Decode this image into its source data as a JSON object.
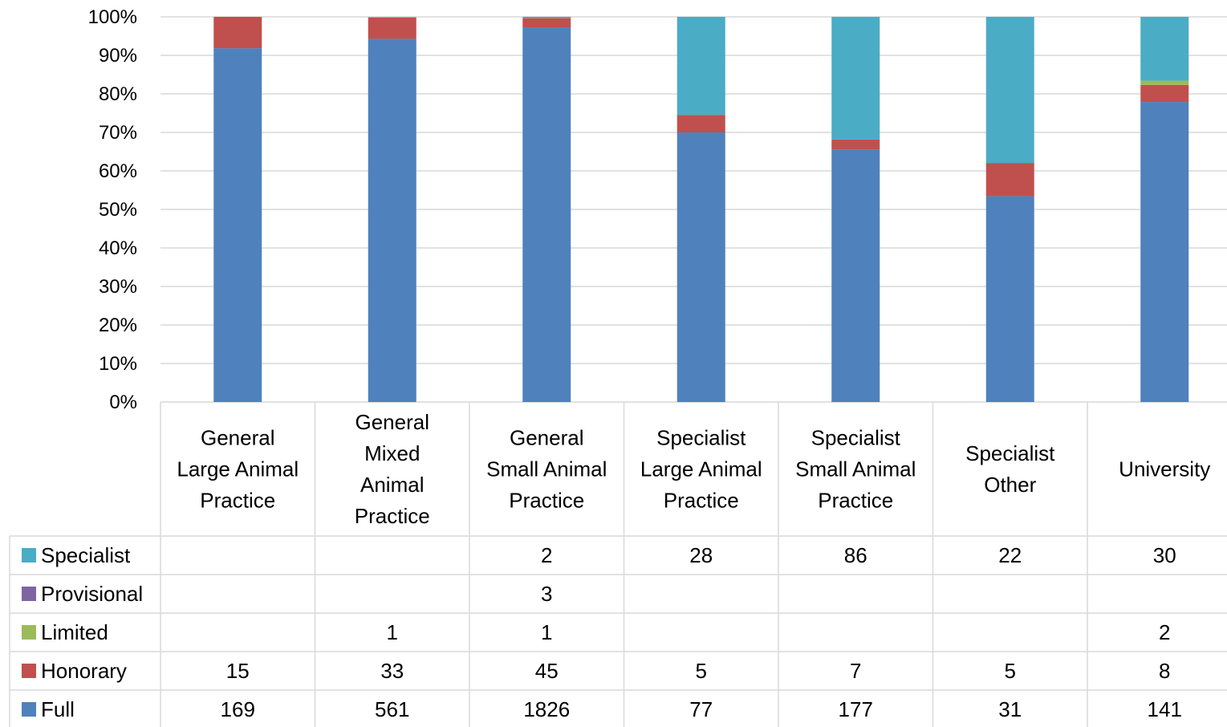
{
  "chart_data": {
    "type": "bar",
    "stacked": "percent",
    "categories": [
      [
        "General",
        "Large Animal",
        "Practice"
      ],
      [
        "General",
        "Mixed",
        "Animal",
        "Practice"
      ],
      [
        "General",
        "Small Animal",
        "Practice"
      ],
      [
        "Specialist",
        "Large Animal",
        "Practice"
      ],
      [
        "Specialist",
        "Small Animal",
        "Practice"
      ],
      [
        "Specialist",
        "Other"
      ],
      [
        "University"
      ]
    ],
    "series": [
      {
        "name": "Full",
        "color": "#4F81BD",
        "values": [
          169,
          561,
          1826,
          77,
          177,
          31,
          141
        ]
      },
      {
        "name": "Honorary",
        "color": "#C0504D",
        "values": [
          15,
          33,
          45,
          5,
          7,
          5,
          8
        ]
      },
      {
        "name": "Limited",
        "color": "#9BBB59",
        "values": [
          null,
          1,
          1,
          null,
          null,
          null,
          2
        ]
      },
      {
        "name": "Provisional",
        "color": "#8064A2",
        "values": [
          null,
          null,
          3,
          null,
          null,
          null,
          null
        ]
      },
      {
        "name": "Specialist",
        "color": "#4BACC6",
        "values": [
          null,
          null,
          2,
          28,
          86,
          22,
          30
        ]
      }
    ],
    "table_order": [
      "Specialist",
      "Provisional",
      "Limited",
      "Honorary",
      "Full"
    ],
    "ylim": [
      0,
      100
    ],
    "yticks": [
      "0%",
      "10%",
      "20%",
      "30%",
      "40%",
      "50%",
      "60%",
      "70%",
      "80%",
      "90%",
      "100%"
    ],
    "grid": true,
    "legend": "data-table",
    "title": "",
    "xlabel": "",
    "ylabel": ""
  }
}
